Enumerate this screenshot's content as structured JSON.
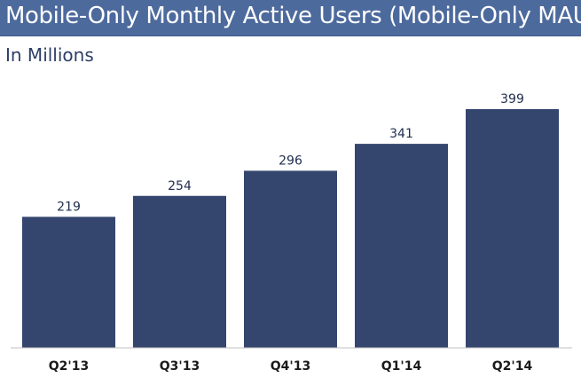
{
  "chart_data": {
    "type": "bar",
    "title": "Mobile-Only Monthly Active Users (Mobile-Only MAUs)",
    "subtitle": "In Millions",
    "categories": [
      "Q2'13",
      "Q3'13",
      "Q4'13",
      "Q1'14",
      "Q2'14"
    ],
    "values": [
      219,
      254,
      296,
      341,
      399
    ],
    "xlabel": "",
    "ylabel": "",
    "ylim": [
      0,
      400
    ],
    "grid": false,
    "bar_color": "#34466e",
    "title_bar_color": "#4d6a9d"
  }
}
